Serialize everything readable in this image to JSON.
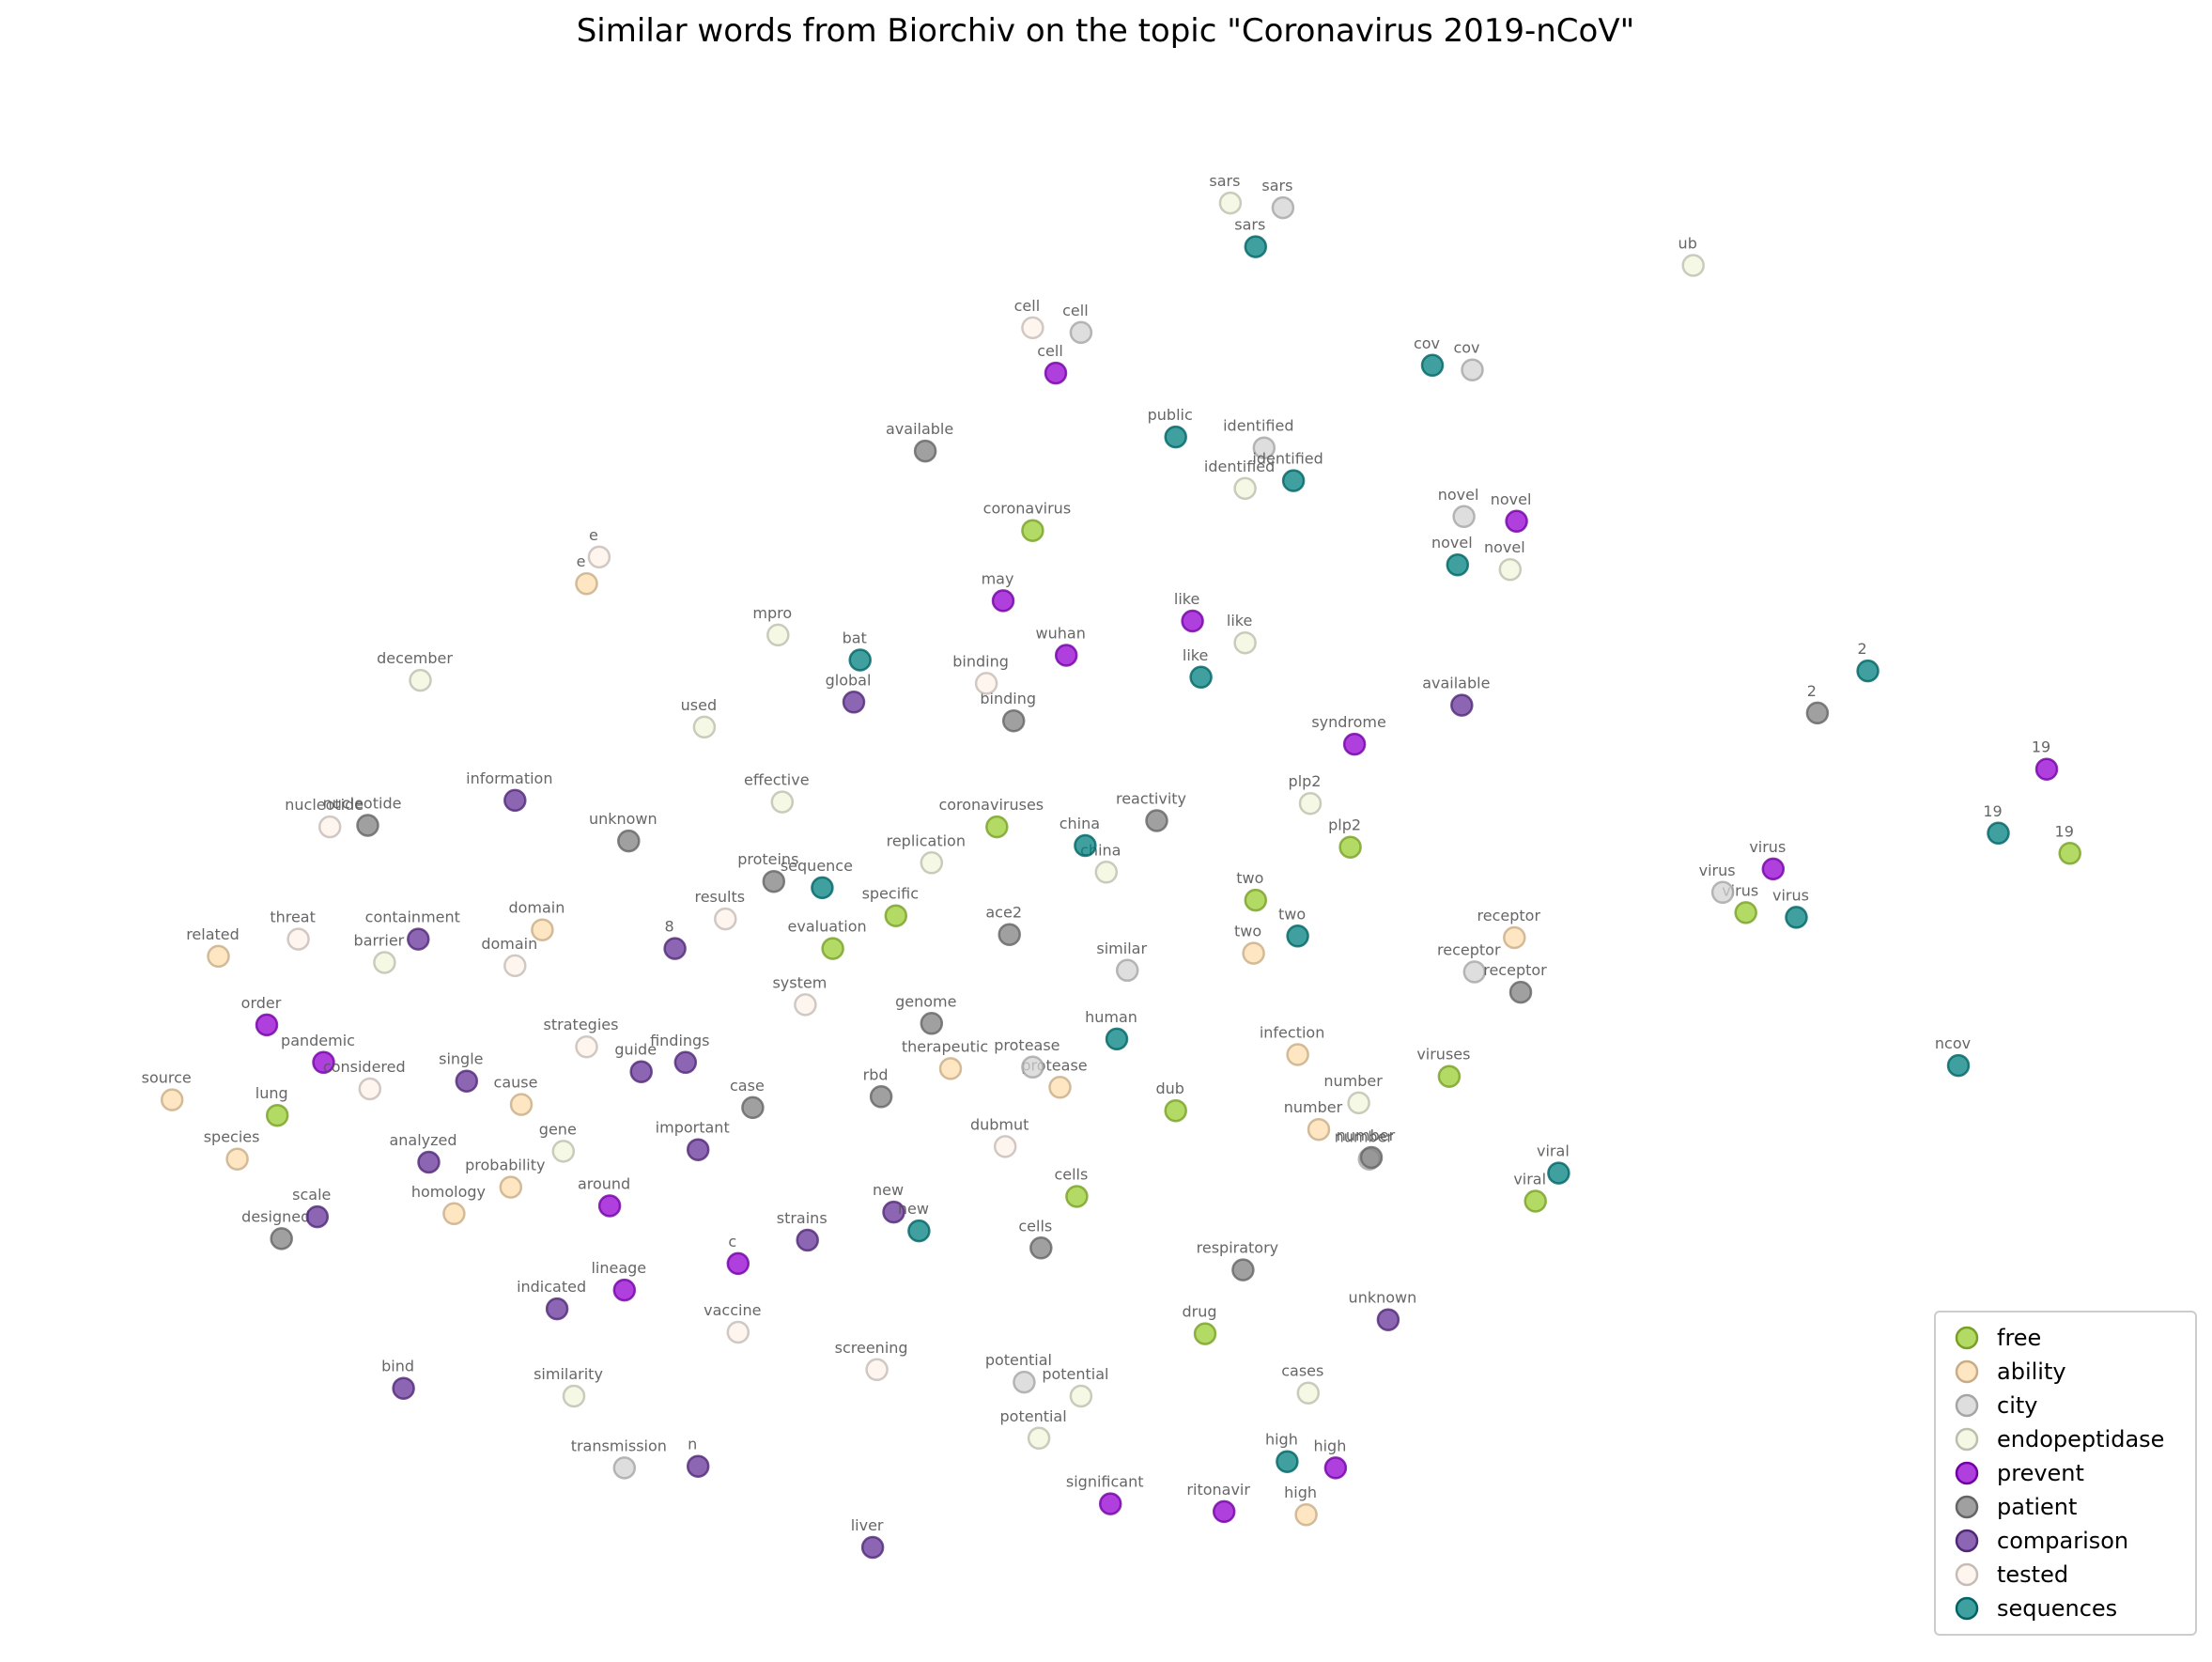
{
  "chart_data": {
    "type": "scatter",
    "title": "Similar words from Biorchiv on the topic \"Coronavirus 2019-nCoV\"",
    "xlabel": "",
    "ylabel": "",
    "xlim": [
      0,
      100
    ],
    "ylim": [
      0,
      100
    ],
    "grid": false,
    "axes_visible": false,
    "legend_position": "bottom-right",
    "series": [
      {
        "name": "free",
        "color": "#9acd32",
        "points": [
          {
            "label": "coronavirus",
            "x": 46.4,
            "y": 70.8
          },
          {
            "label": "coronaviruses",
            "x": 44.7,
            "y": 51.8
          },
          {
            "label": "specific",
            "x": 39.9,
            "y": 46.1
          },
          {
            "label": "evaluation",
            "x": 36.9,
            "y": 44.0
          },
          {
            "label": "plp2",
            "x": 61.5,
            "y": 50.5
          },
          {
            "label": "two",
            "x": 57.0,
            "y": 47.1
          },
          {
            "label": "virus",
            "x": 80.3,
            "y": 46.3
          },
          {
            "label": "19",
            "x": 95.7,
            "y": 50.1
          },
          {
            "label": "viruses",
            "x": 66.2,
            "y": 35.8
          },
          {
            "label": "viral",
            "x": 70.3,
            "y": 27.8
          },
          {
            "label": "lung",
            "x": 10.5,
            "y": 33.3
          },
          {
            "label": "dub",
            "x": 53.2,
            "y": 33.6
          },
          {
            "label": "cells",
            "x": 48.5,
            "y": 28.1
          },
          {
            "label": "drug",
            "x": 54.6,
            "y": 19.3
          }
        ]
      },
      {
        "name": "ability",
        "color": "#ffdead",
        "points": [
          {
            "label": "e",
            "x": 25.2,
            "y": 67.4
          },
          {
            "label": "domain",
            "x": 23.1,
            "y": 45.2
          },
          {
            "label": "related",
            "x": 7.7,
            "y": 43.5
          },
          {
            "label": "source",
            "x": 5.5,
            "y": 34.3
          },
          {
            "label": "species",
            "x": 8.6,
            "y": 30.5
          },
          {
            "label": "cause",
            "x": 22.1,
            "y": 34.0
          },
          {
            "label": "probability",
            "x": 21.6,
            "y": 28.7
          },
          {
            "label": "homology",
            "x": 18.9,
            "y": 27.0
          },
          {
            "label": "therapeutic",
            "x": 42.5,
            "y": 36.3
          },
          {
            "label": "protease",
            "x": 47.7,
            "y": 35.1
          },
          {
            "label": "two",
            "x": 56.9,
            "y": 43.7
          },
          {
            "label": "infection",
            "x": 59.0,
            "y": 37.2
          },
          {
            "label": "number",
            "x": 60.0,
            "y": 32.4
          },
          {
            "label": "receptor",
            "x": 69.3,
            "y": 44.7
          },
          {
            "label": "high",
            "x": 59.4,
            "y": 7.7
          }
        ]
      },
      {
        "name": "city",
        "color": "#d3d3d3",
        "points": [
          {
            "label": "sars",
            "x": 58.3,
            "y": 91.5
          },
          {
            "label": "cell",
            "x": 48.7,
            "y": 83.5
          },
          {
            "label": "cov",
            "x": 67.3,
            "y": 81.1
          },
          {
            "label": "identified",
            "x": 57.4,
            "y": 76.1
          },
          {
            "label": "novel",
            "x": 66.9,
            "y": 71.7
          },
          {
            "label": "virus",
            "x": 79.2,
            "y": 47.6
          },
          {
            "label": "receptor",
            "x": 67.4,
            "y": 42.5
          },
          {
            "label": "similar",
            "x": 50.9,
            "y": 42.6
          },
          {
            "label": "protease",
            "x": 46.4,
            "y": 36.4
          },
          {
            "label": "number",
            "x": 62.4,
            "y": 30.5
          },
          {
            "label": "potential",
            "x": 46.0,
            "y": 16.2
          },
          {
            "label": "transmission",
            "x": 27.0,
            "y": 10.7
          }
        ]
      },
      {
        "name": "endopeptidase",
        "color": "#f0f5dc",
        "points": [
          {
            "label": "sars",
            "x": 55.8,
            "y": 91.8
          },
          {
            "label": "ub",
            "x": 77.8,
            "y": 87.8
          },
          {
            "label": "identified",
            "x": 56.5,
            "y": 73.5
          },
          {
            "label": "novel",
            "x": 69.1,
            "y": 68.3
          },
          {
            "label": "like",
            "x": 56.5,
            "y": 63.6
          },
          {
            "label": "mpro",
            "x": 34.3,
            "y": 64.1
          },
          {
            "label": "used",
            "x": 30.8,
            "y": 58.2
          },
          {
            "label": "effective",
            "x": 34.5,
            "y": 53.4
          },
          {
            "label": "december",
            "x": 17.3,
            "y": 61.2
          },
          {
            "label": "replication",
            "x": 41.6,
            "y": 49.5
          },
          {
            "label": "china",
            "x": 49.9,
            "y": 48.9
          },
          {
            "label": "plp2",
            "x": 59.6,
            "y": 53.3
          },
          {
            "label": "barrier",
            "x": 15.6,
            "y": 43.1
          },
          {
            "label": "gene",
            "x": 24.1,
            "y": 31.0
          },
          {
            "label": "number",
            "x": 61.9,
            "y": 34.1
          },
          {
            "label": "similarity",
            "x": 24.6,
            "y": 15.3
          },
          {
            "label": "potential",
            "x": 48.7,
            "y": 15.3
          },
          {
            "label": "potential",
            "x": 46.7,
            "y": 12.6
          },
          {
            "label": "cases",
            "x": 59.5,
            "y": 15.5
          }
        ]
      },
      {
        "name": "prevent",
        "color": "#9400d3",
        "points": [
          {
            "label": "cell",
            "x": 47.5,
            "y": 80.9
          },
          {
            "label": "novel",
            "x": 69.4,
            "y": 71.4
          },
          {
            "label": "may",
            "x": 45.0,
            "y": 66.3
          },
          {
            "label": "like",
            "x": 54.0,
            "y": 65.0
          },
          {
            "label": "wuhan",
            "x": 48.0,
            "y": 62.8
          },
          {
            "label": "syndrome",
            "x": 61.7,
            "y": 57.1
          },
          {
            "label": "19",
            "x": 94.6,
            "y": 55.5
          },
          {
            "label": "virus",
            "x": 81.6,
            "y": 49.1
          },
          {
            "label": "order",
            "x": 10.0,
            "y": 39.1
          },
          {
            "label": "pandemic",
            "x": 12.7,
            "y": 36.7
          },
          {
            "label": "around",
            "x": 26.3,
            "y": 27.5
          },
          {
            "label": "c",
            "x": 32.4,
            "y": 23.8
          },
          {
            "label": "lineage",
            "x": 27.0,
            "y": 22.1
          },
          {
            "label": "high",
            "x": 60.8,
            "y": 10.7
          },
          {
            "label": "significant",
            "x": 50.1,
            "y": 8.4
          },
          {
            "label": "ritonavir",
            "x": 55.5,
            "y": 7.9
          }
        ]
      },
      {
        "name": "patient",
        "color": "#808080",
        "points": [
          {
            "label": "available",
            "x": 41.3,
            "y": 75.9
          },
          {
            "label": "binding",
            "x": 45.5,
            "y": 58.6
          },
          {
            "label": "2",
            "x": 83.7,
            "y": 59.1
          },
          {
            "label": "nucleotide",
            "x": 14.8,
            "y": 51.9
          },
          {
            "label": "unknown",
            "x": 27.2,
            "y": 50.9
          },
          {
            "label": "proteins",
            "x": 34.1,
            "y": 48.3
          },
          {
            "label": "reactivity",
            "x": 52.3,
            "y": 52.2
          },
          {
            "label": "ace2",
            "x": 45.3,
            "y": 44.9
          },
          {
            "label": "receptor",
            "x": 69.6,
            "y": 41.2
          },
          {
            "label": "genome",
            "x": 41.6,
            "y": 39.2
          },
          {
            "label": "rbd",
            "x": 39.2,
            "y": 34.5
          },
          {
            "label": "case",
            "x": 33.1,
            "y": 33.8
          },
          {
            "label": "number",
            "x": 62.5,
            "y": 30.6
          },
          {
            "label": "designed",
            "x": 10.7,
            "y": 25.4
          },
          {
            "label": "cells",
            "x": 46.8,
            "y": 24.8
          },
          {
            "label": "respiratory",
            "x": 56.4,
            "y": 23.4
          }
        ]
      },
      {
        "name": "comparison",
        "color": "#663399",
        "points": [
          {
            "label": "global",
            "x": 37.9,
            "y": 59.8
          },
          {
            "label": "available",
            "x": 66.8,
            "y": 59.6
          },
          {
            "label": "information",
            "x": 21.8,
            "y": 53.5
          },
          {
            "label": "containment",
            "x": 17.2,
            "y": 44.6
          },
          {
            "label": "8",
            "x": 29.4,
            "y": 44.0
          },
          {
            "label": "single",
            "x": 19.5,
            "y": 35.5
          },
          {
            "label": "guide",
            "x": 27.8,
            "y": 36.1
          },
          {
            "label": "findings",
            "x": 29.9,
            "y": 36.7
          },
          {
            "label": "analyzed",
            "x": 17.7,
            "y": 30.3
          },
          {
            "label": "important",
            "x": 30.5,
            "y": 31.1
          },
          {
            "label": "scale",
            "x": 12.4,
            "y": 26.8
          },
          {
            "label": "new",
            "x": 39.8,
            "y": 27.1
          },
          {
            "label": "strains",
            "x": 35.7,
            "y": 25.3
          },
          {
            "label": "indicated",
            "x": 23.8,
            "y": 20.9
          },
          {
            "label": "unknown",
            "x": 63.3,
            "y": 20.2
          },
          {
            "label": "bind",
            "x": 16.5,
            "y": 15.8
          },
          {
            "label": "n",
            "x": 30.5,
            "y": 10.8
          },
          {
            "label": "liver",
            "x": 38.8,
            "y": 5.6
          }
        ]
      },
      {
        "name": "tested",
        "color": "#fdf1ea",
        "points": [
          {
            "label": "cell",
            "x": 46.4,
            "y": 83.8
          },
          {
            "label": "e",
            "x": 25.8,
            "y": 69.1
          },
          {
            "label": "binding",
            "x": 44.2,
            "y": 61.0
          },
          {
            "label": "nucleotide",
            "x": 13.0,
            "y": 51.8
          },
          {
            "label": "results",
            "x": 31.8,
            "y": 45.9
          },
          {
            "label": "threat",
            "x": 11.5,
            "y": 44.6
          },
          {
            "label": "domain",
            "x": 21.8,
            "y": 42.9
          },
          {
            "label": "system",
            "x": 35.6,
            "y": 40.4
          },
          {
            "label": "strategies",
            "x": 25.2,
            "y": 37.7
          },
          {
            "label": "considered",
            "x": 14.9,
            "y": 35.0
          },
          {
            "label": "dubmut",
            "x": 45.1,
            "y": 31.3
          },
          {
            "label": "vaccine",
            "x": 32.4,
            "y": 19.4
          },
          {
            "label": "screening",
            "x": 39.0,
            "y": 17.0
          }
        ]
      },
      {
        "name": "sequences",
        "color": "#008080",
        "points": [
          {
            "label": "sars",
            "x": 57.0,
            "y": 89.0
          },
          {
            "label": "cov",
            "x": 65.4,
            "y": 81.4
          },
          {
            "label": "public",
            "x": 53.2,
            "y": 76.8
          },
          {
            "label": "identified",
            "x": 58.8,
            "y": 74.0
          },
          {
            "label": "novel",
            "x": 66.6,
            "y": 68.6
          },
          {
            "label": "bat",
            "x": 38.2,
            "y": 62.5
          },
          {
            "label": "like",
            "x": 54.4,
            "y": 61.4
          },
          {
            "label": "2",
            "x": 86.1,
            "y": 61.8
          },
          {
            "label": "sequence",
            "x": 36.4,
            "y": 47.9
          },
          {
            "label": "china",
            "x": 48.9,
            "y": 50.6
          },
          {
            "label": "19",
            "x": 92.3,
            "y": 51.4
          },
          {
            "label": "virus",
            "x": 82.7,
            "y": 46.0
          },
          {
            "label": "two",
            "x": 59.0,
            "y": 44.8
          },
          {
            "label": "human",
            "x": 50.4,
            "y": 38.2
          },
          {
            "label": "ncov",
            "x": 90.4,
            "y": 36.5
          },
          {
            "label": "viral",
            "x": 71.4,
            "y": 29.6
          },
          {
            "label": "new",
            "x": 41.0,
            "y": 25.9
          },
          {
            "label": "high",
            "x": 58.5,
            "y": 11.1
          }
        ]
      }
    ]
  }
}
